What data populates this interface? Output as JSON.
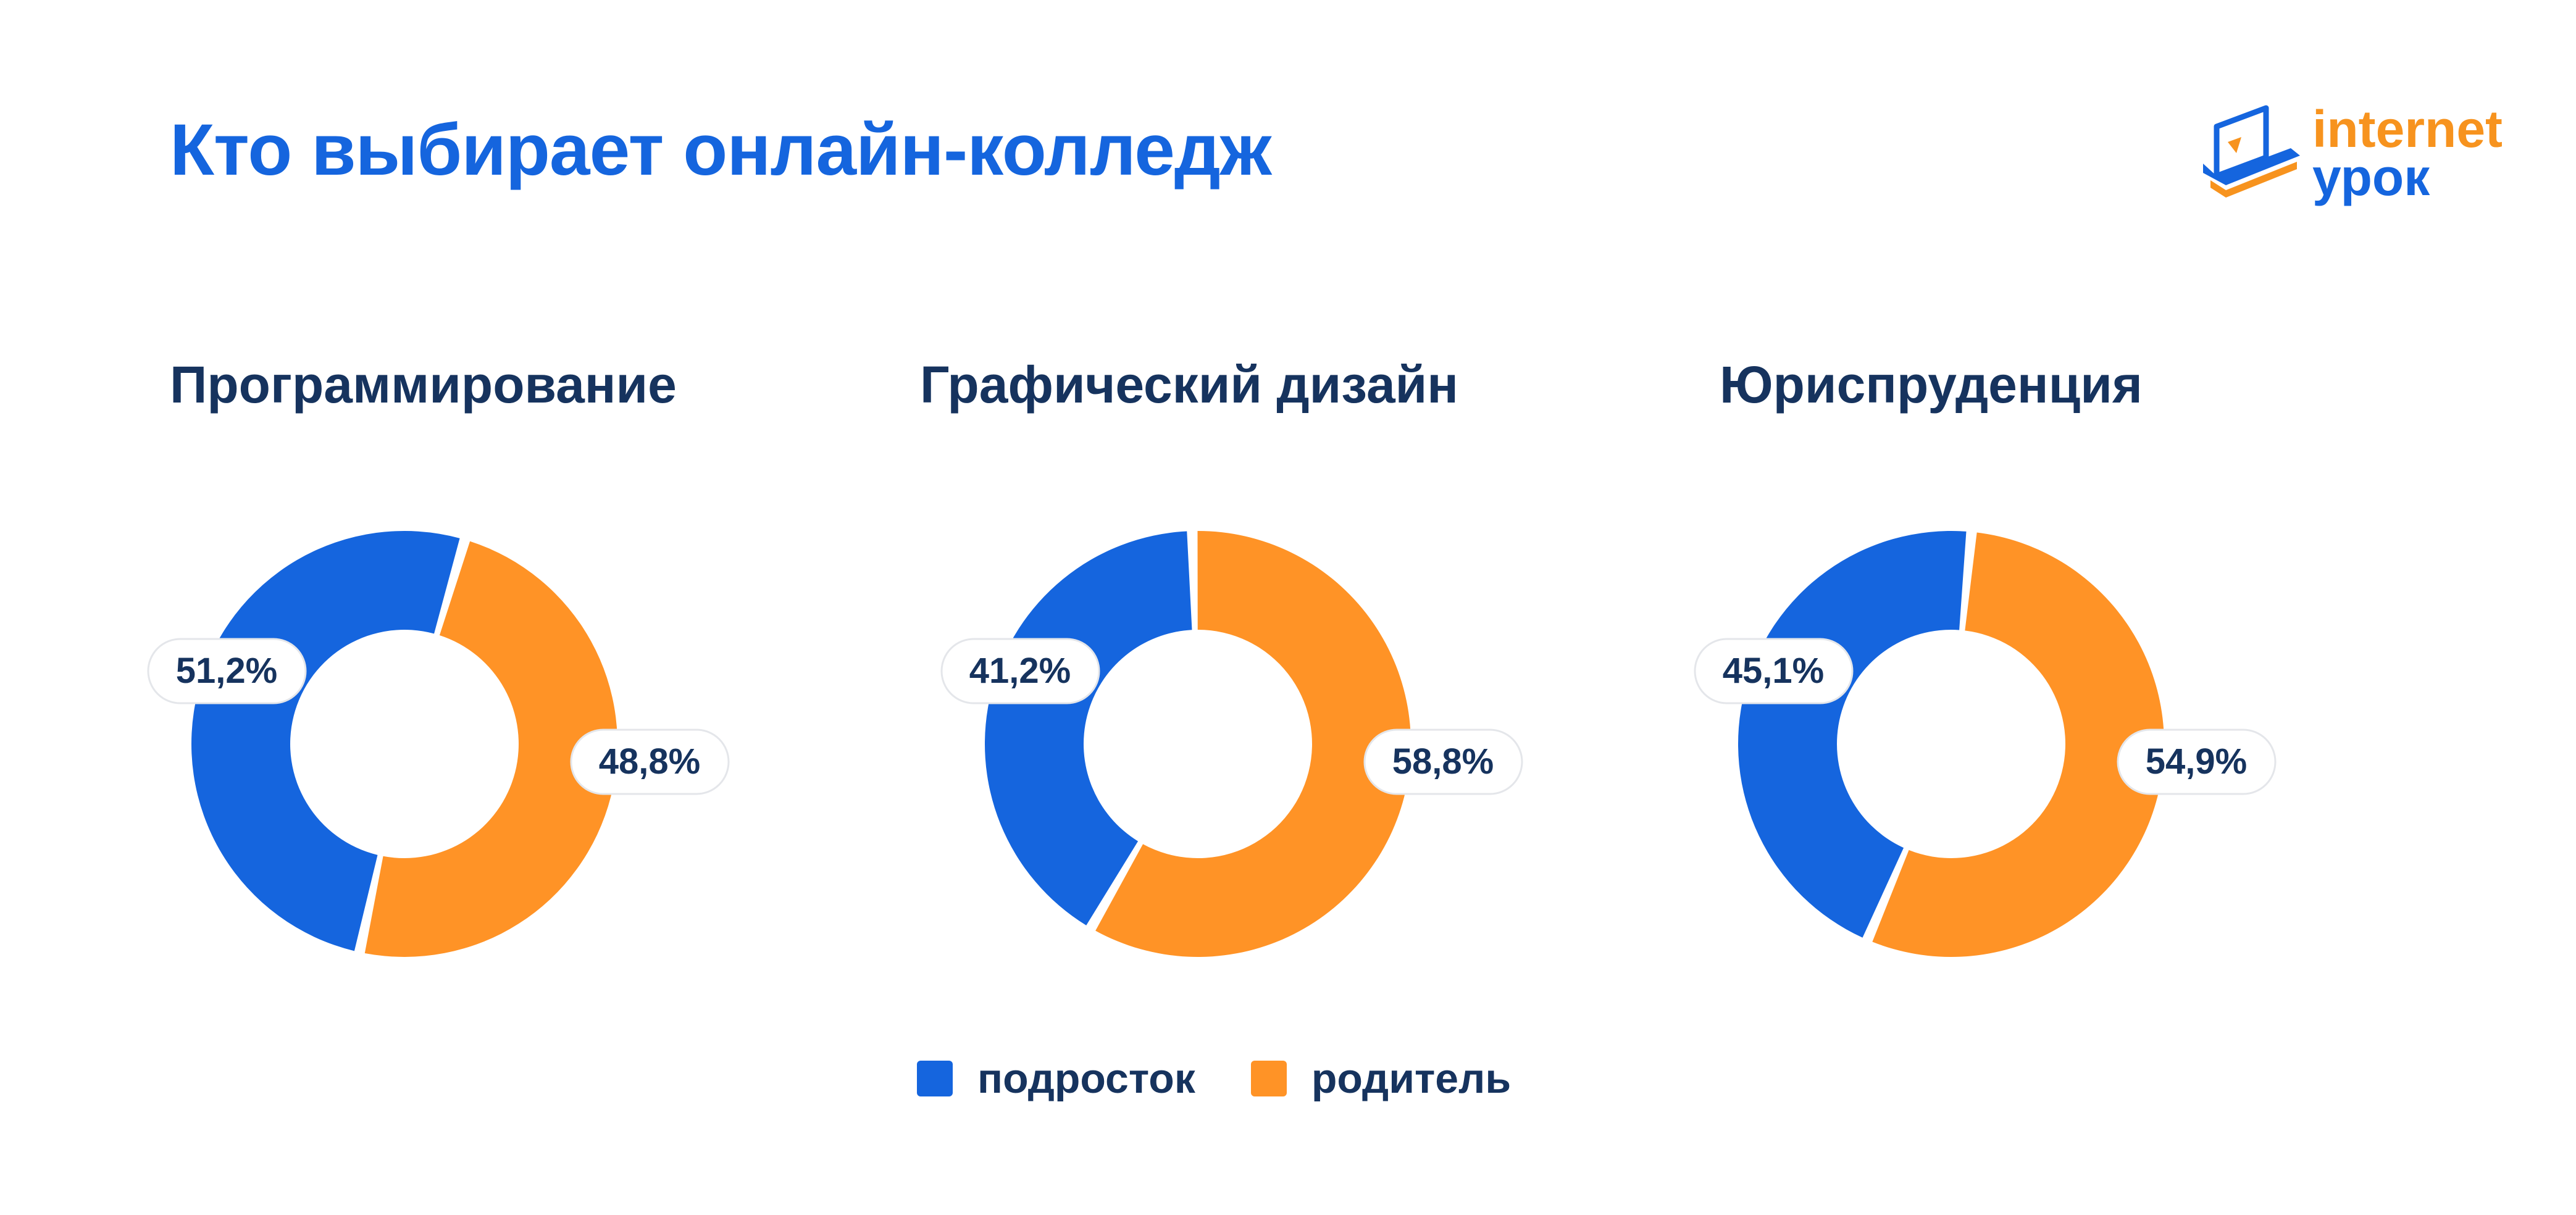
{
  "page": {
    "title": "Кто выбирает онлайн-колледж"
  },
  "logo": {
    "line1": "internet",
    "line2": "урок",
    "colors": {
      "orange": "#f7931e",
      "blue": "#1565de"
    }
  },
  "colors": {
    "teen": "#1565de",
    "parent": "#ff9326",
    "title": "#1565de",
    "text": "#16335e"
  },
  "legend": [
    {
      "label": "подросток",
      "color": "#1565de"
    },
    {
      "label": "родитель",
      "color": "#ff9326"
    }
  ],
  "chart_data": [
    {
      "type": "pie",
      "title": "Программирование",
      "series": [
        {
          "name": "подросток",
          "value": 51.2,
          "label": "51,2%"
        },
        {
          "name": "родитель",
          "value": 48.8,
          "label": "48,8%"
        }
      ]
    },
    {
      "type": "pie",
      "title": "Графический дизайн",
      "series": [
        {
          "name": "подросток",
          "value": 41.2,
          "label": "41,2%"
        },
        {
          "name": "родитель",
          "value": 58.8,
          "label": "58,8%"
        }
      ]
    },
    {
      "type": "pie",
      "title": "Юриспруденция",
      "series": [
        {
          "name": "подросток",
          "value": 45.1,
          "label": "45,1%"
        },
        {
          "name": "родитель",
          "value": 54.9,
          "label": "54,9%"
        }
      ]
    }
  ]
}
